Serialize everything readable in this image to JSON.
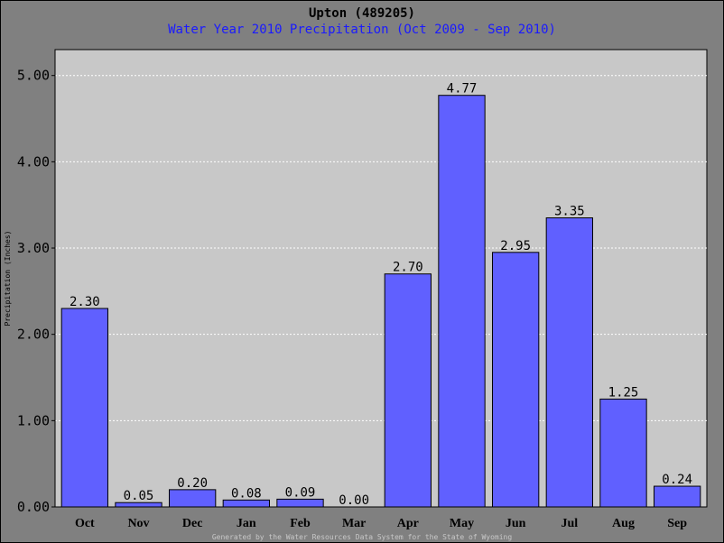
{
  "chart_data": {
    "type": "bar",
    "title": "Upton (489205)",
    "subtitle": "Water Year 2010 Precipitation (Oct 2009 - Sep 2010)",
    "ylabel": "Precipitation (Inches)",
    "xlabel": "",
    "categories": [
      "Oct",
      "Nov",
      "Dec",
      "Jan",
      "Feb",
      "Mar",
      "Apr",
      "May",
      "Jun",
      "Jul",
      "Aug",
      "Sep"
    ],
    "values": [
      2.3,
      0.05,
      0.2,
      0.08,
      0.09,
      0.0,
      2.7,
      4.77,
      2.95,
      3.35,
      1.25,
      0.24
    ],
    "value_labels": [
      "2.30",
      "0.05",
      "0.20",
      "0.08",
      "0.09",
      "0.00",
      "2.70",
      "4.77",
      "2.95",
      "3.35",
      "1.25",
      "0.24"
    ],
    "yticks": [
      "0.00",
      "1.00",
      "2.00",
      "3.00",
      "4.00",
      "5.00"
    ],
    "ylim": [
      0,
      5.0
    ],
    "grid": true,
    "bar_color": "#6060ff",
    "plot_background": "#c8c8c8",
    "page_background": "#808080",
    "subtitle_color": "#1a1aff"
  },
  "footer": "Generated by the Water Resources Data System for the State of Wyoming"
}
